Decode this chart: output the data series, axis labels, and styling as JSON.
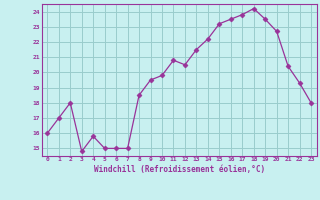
{
  "x_values": [
    0,
    1,
    2,
    3,
    4,
    5,
    6,
    7,
    8,
    9,
    10,
    11,
    12,
    13,
    14,
    15,
    16,
    17,
    18,
    19,
    20,
    21,
    22,
    23
  ],
  "y_values": [
    16.0,
    17.0,
    18.0,
    14.8,
    15.8,
    15.0,
    15.0,
    15.0,
    18.5,
    19.5,
    19.8,
    20.8,
    20.5,
    21.5,
    22.2,
    23.2,
    23.5,
    23.8,
    24.2,
    23.5,
    22.7,
    20.4,
    19.3,
    18.0
  ],
  "line_color": "#993399",
  "marker": "D",
  "marker_size": 2.5,
  "bg_color": "#c8f0f0",
  "grid_color": "#99cccc",
  "xlabel": "Windchill (Refroidissement éolien,°C)",
  "xlabel_color": "#993399",
  "tick_color": "#993399",
  "ylim": [
    14.5,
    24.5
  ],
  "xlim": [
    -0.5,
    23.5
  ],
  "yticks": [
    15,
    16,
    17,
    18,
    19,
    20,
    21,
    22,
    23,
    24
  ],
  "xticks": [
    0,
    1,
    2,
    3,
    4,
    5,
    6,
    7,
    8,
    9,
    10,
    11,
    12,
    13,
    14,
    15,
    16,
    17,
    18,
    19,
    20,
    21,
    22,
    23
  ]
}
